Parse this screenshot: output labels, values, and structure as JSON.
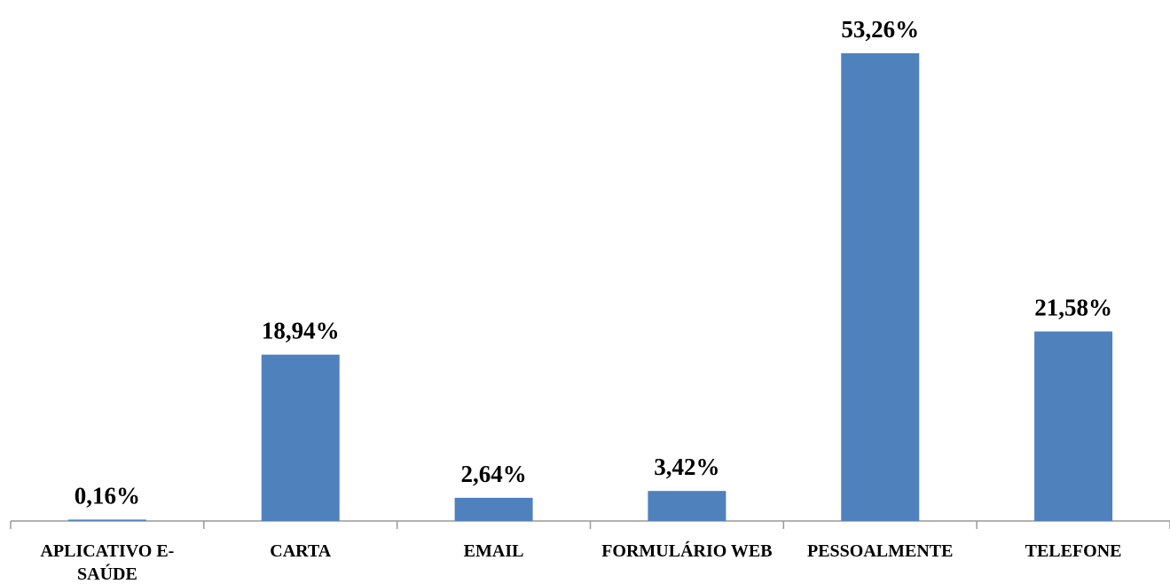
{
  "chart_data": {
    "type": "bar",
    "categories": [
      "APLICATIVO E-SAÚDE",
      "CARTA",
      "EMAIL",
      "FORMULÁRIO WEB",
      "PESSOALMENTE",
      "TELEFONE"
    ],
    "values": [
      0.16,
      18.94,
      2.64,
      3.42,
      53.26,
      21.58
    ],
    "value_labels": [
      "0,16%",
      "18,94%",
      "2,64%",
      "3,42%",
      "53,26%",
      "21,58%"
    ],
    "color": "#4f81bd"
  }
}
